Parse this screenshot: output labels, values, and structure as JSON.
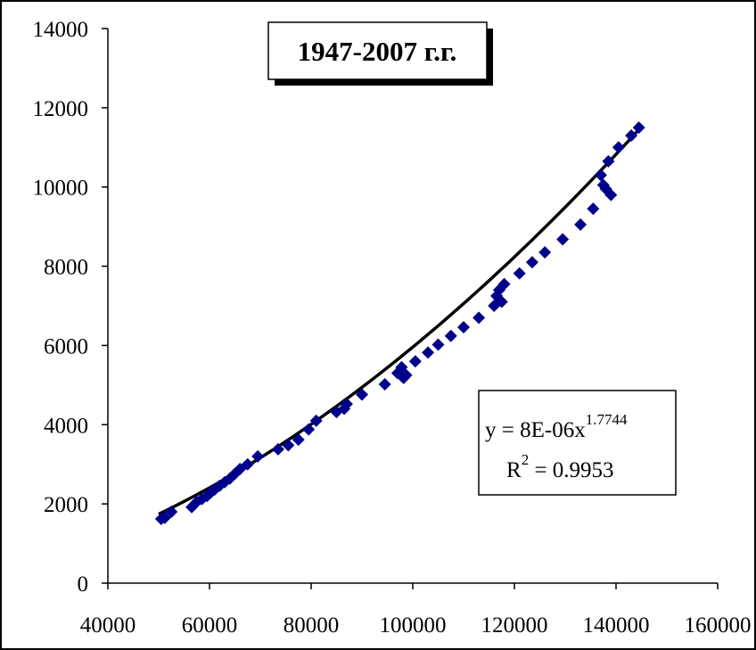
{
  "chart_data": {
    "type": "scatter",
    "title": "1947-2007 г.г.",
    "xlabel": "",
    "ylabel": "",
    "xlim": [
      40000,
      160000
    ],
    "ylim": [
      0,
      14000
    ],
    "x_ticks": [
      40000,
      60000,
      80000,
      100000,
      120000,
      140000,
      160000
    ],
    "y_ticks": [
      0,
      2000,
      4000,
      6000,
      8000,
      10000,
      12000,
      14000
    ],
    "grid": false,
    "marker_color": "#00008B",
    "trend_color": "#000000",
    "trendline": {
      "type": "power",
      "a": 8e-06,
      "b": 1.7744,
      "x_range": [
        50000,
        145000
      ],
      "equation_prefix": "y = 8E-06x",
      "equation_exponent": "1.7744",
      "r2_prefix": "R",
      "r2_exponent": "2",
      "r2_suffix": " = 0.9953"
    },
    "series": [
      {
        "marker": "diamond",
        "points": [
          [
            50500,
            1620
          ],
          [
            51200,
            1650
          ],
          [
            52500,
            1800
          ],
          [
            56500,
            1920
          ],
          [
            57500,
            2050
          ],
          [
            58500,
            2120
          ],
          [
            59500,
            2200
          ],
          [
            60200,
            2280
          ],
          [
            61000,
            2360
          ],
          [
            62000,
            2460
          ],
          [
            63000,
            2550
          ],
          [
            64000,
            2640
          ],
          [
            65000,
            2760
          ],
          [
            66000,
            2880
          ],
          [
            67500,
            3000
          ],
          [
            69500,
            3200
          ],
          [
            73500,
            3380
          ],
          [
            75500,
            3480
          ],
          [
            77500,
            3620
          ],
          [
            79500,
            3880
          ],
          [
            81000,
            4100
          ],
          [
            85000,
            4320
          ],
          [
            86500,
            4400
          ],
          [
            87000,
            4520
          ],
          [
            90000,
            4760
          ],
          [
            94500,
            5020
          ],
          [
            97000,
            5300
          ],
          [
            97800,
            5450
          ],
          [
            98200,
            5180
          ],
          [
            98700,
            5250
          ],
          [
            100500,
            5600
          ],
          [
            103000,
            5820
          ],
          [
            105000,
            6020
          ],
          [
            107500,
            6240
          ],
          [
            110000,
            6460
          ],
          [
            113000,
            6700
          ],
          [
            116000,
            7000
          ],
          [
            116500,
            7250
          ],
          [
            117000,
            7400
          ],
          [
            117500,
            7100
          ],
          [
            118000,
            7550
          ],
          [
            121000,
            7820
          ],
          [
            123500,
            8100
          ],
          [
            126000,
            8350
          ],
          [
            129500,
            8680
          ],
          [
            133000,
            9050
          ],
          [
            135500,
            9450
          ],
          [
            137000,
            10300
          ],
          [
            137500,
            10050
          ],
          [
            138000,
            9950
          ],
          [
            138500,
            10650
          ],
          [
            139000,
            9800
          ],
          [
            140500,
            11000
          ],
          [
            143000,
            11300
          ],
          [
            144500,
            11500
          ]
        ]
      }
    ]
  }
}
